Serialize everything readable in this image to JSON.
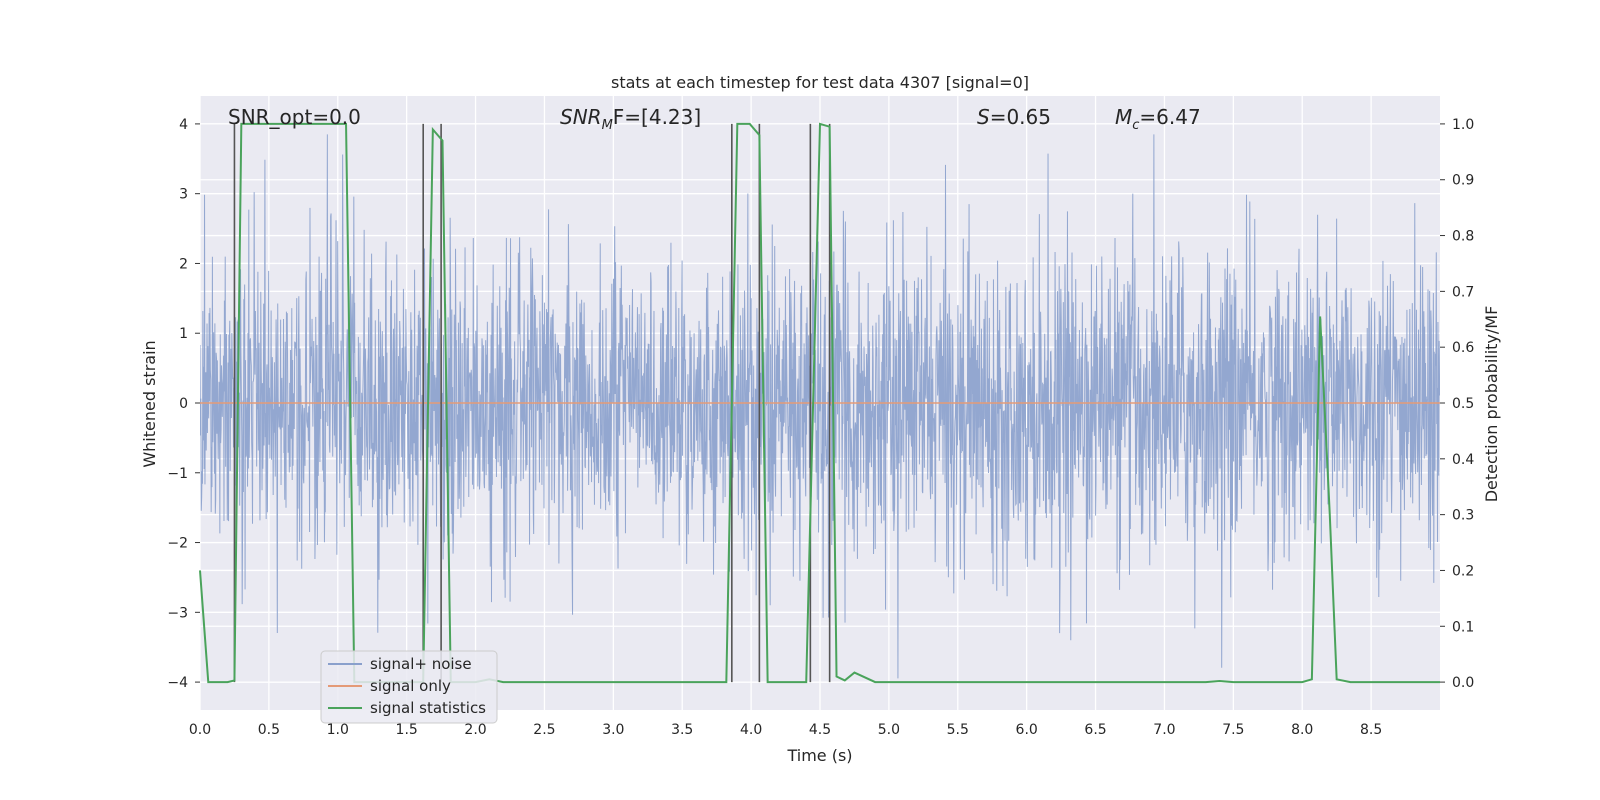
{
  "chart_data": {
    "type": "line",
    "title": "stats at each timestep for test data 4307 [signal=0]",
    "xlabel": "Time (s)",
    "ylabel_left": "Whitened strain",
    "ylabel_right": "Detection probability/MF",
    "xlim": [
      0.0,
      9.0
    ],
    "ylim_left": [
      -4.4,
      4.4
    ],
    "ylim_right": [
      -0.05,
      1.05
    ],
    "xticks": [
      "0.0",
      "0.5",
      "1.0",
      "1.5",
      "2.0",
      "2.5",
      "3.0",
      "3.5",
      "4.0",
      "4.5",
      "5.0",
      "5.5",
      "6.0",
      "6.5",
      "7.0",
      "7.5",
      "8.0",
      "8.5"
    ],
    "yticks_left": [
      "4",
      "3",
      "2",
      "1",
      "0",
      "−1",
      "−2",
      "−3",
      "−4"
    ],
    "yticks_right": [
      "1.0",
      "0.9",
      "0.8",
      "0.7",
      "0.6",
      "0.5",
      "0.4",
      "0.3",
      "0.2",
      "0.1",
      "0.0"
    ],
    "grid": true,
    "annotations": {
      "snr_opt": "SNR_opt=0.0",
      "snr_mf_prefix": "SNR",
      "snr_mf_sub": "M",
      "snr_mf_suffix": "F=[4.23]",
      "s_var": "S",
      "s_value": "=0.65",
      "mc_var": "M",
      "mc_sub": "c",
      "mc_value": "=6.47"
    },
    "legend": {
      "position": "lower-left",
      "entries": [
        "signal+ noise",
        "signal only",
        "signal statistics"
      ]
    },
    "series": [
      {
        "name": "signal+ noise",
        "axis": "left",
        "color": "#8aa0cc",
        "description": "whitened strain noise, roughly within -3.5 to 3.8"
      },
      {
        "name": "signal only",
        "axis": "left",
        "color": "#e49a77",
        "x": [
          0.0,
          9.0
        ],
        "y": [
          0.0,
          0.0
        ]
      },
      {
        "name": "signal statistics",
        "axis": "right",
        "color": "#4aa35b",
        "x": [
          0.0,
          0.06,
          0.2,
          0.25,
          0.3,
          1.0,
          1.06,
          1.12,
          1.62,
          1.69,
          1.76,
          1.82,
          1.88,
          2.0,
          2.1,
          2.2,
          3.5,
          3.82,
          3.9,
          3.99,
          4.06,
          4.12,
          4.4,
          4.5,
          4.57,
          4.62,
          4.68,
          4.75,
          4.9,
          5.0,
          7.3,
          7.4,
          7.5,
          8.0,
          8.07,
          8.13,
          8.2,
          8.25,
          8.35,
          9.0
        ],
        "y": [
          0.2,
          0.0,
          0.0,
          0.003,
          1.0,
          1.0,
          1.0,
          0.0,
          0.0,
          0.99,
          0.97,
          0.0,
          0.0,
          0.0,
          0.005,
          0.0,
          0.0,
          0.0,
          1.0,
          1.0,
          0.98,
          0.0,
          0.0,
          1.0,
          0.995,
          0.01,
          0.003,
          0.017,
          0.0,
          0.0,
          0.0,
          0.002,
          0.0,
          0.0,
          0.005,
          0.655,
          0.3,
          0.005,
          0.0,
          0.0
        ]
      }
    ],
    "vertical_lines_x": [
      0.25,
      1.62,
      1.75,
      3.86,
      4.06,
      4.43,
      4.57
    ],
    "style": {
      "background": "#eaeaf2",
      "grid_color": "#ffffff",
      "noise_color": "#8aa0cc",
      "signal_color": "#e49a77",
      "stat_color": "#4aa35b",
      "vline_color": "#555555"
    }
  }
}
